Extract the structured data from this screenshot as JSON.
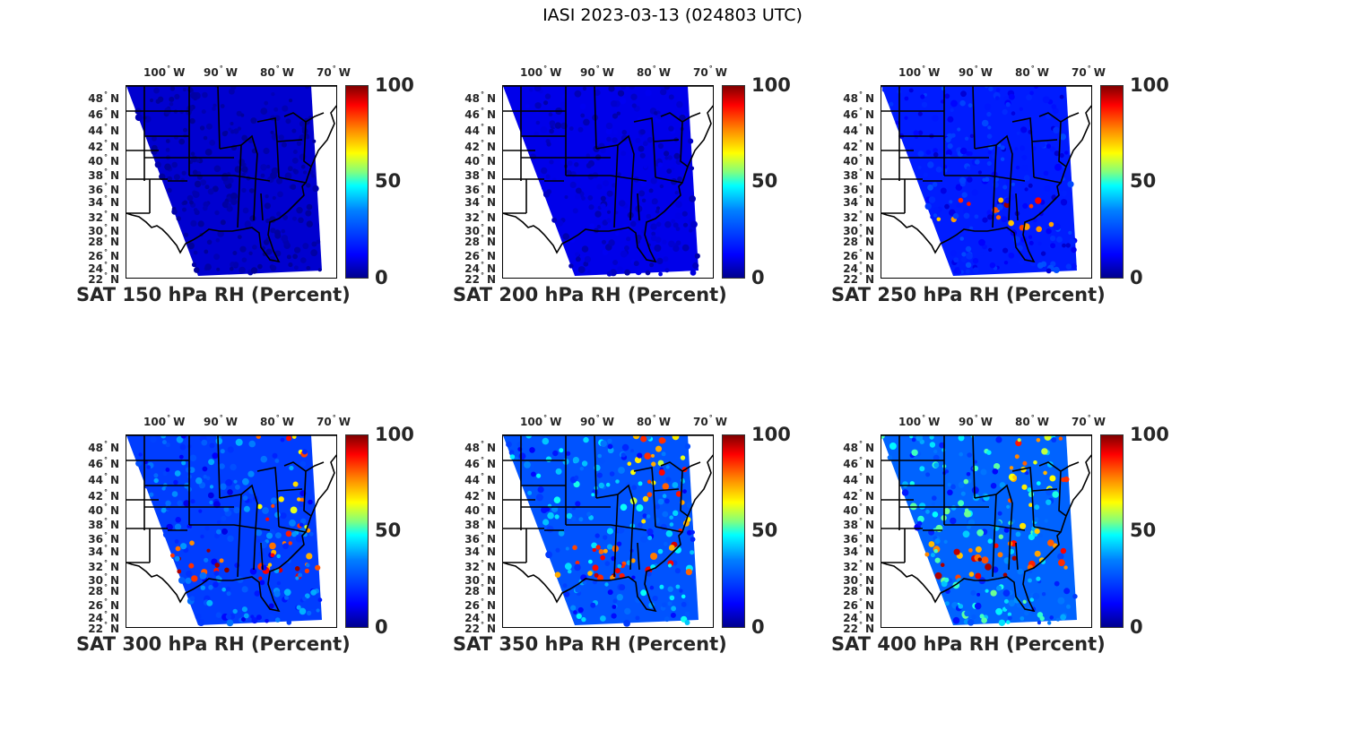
{
  "figure": {
    "title": "IASI 2023-03-13 (024803 UTC)"
  },
  "axes": {
    "lon_ticks": [
      "100",
      "90",
      "80",
      "70"
    ],
    "lon_hemisphere": "W",
    "lat_ticks": [
      "48",
      "46",
      "44",
      "42",
      "40",
      "38",
      "36",
      "34",
      "32",
      "30",
      "28",
      "26",
      "24",
      "22"
    ],
    "lat_hemisphere": "N",
    "degree_symbol": "°"
  },
  "colorbar": {
    "max_label": "100",
    "mid_label": "50",
    "min_label": "0",
    "colors": [
      "#00008f",
      "#0000ff",
      "#0080ff",
      "#00ffff",
      "#ffff00",
      "#ff8000",
      "#ff0000",
      "#800000"
    ]
  },
  "panels": [
    {
      "title": "SAT 150 hPa RH (Percent)",
      "level_hpa": 150,
      "moisture_level": 0.05
    },
    {
      "title": "SAT 200 hPa RH (Percent)",
      "level_hpa": 200,
      "moisture_level": 0.12
    },
    {
      "title": "SAT 250 hPa RH (Percent)",
      "level_hpa": 250,
      "moisture_level": 0.3
    },
    {
      "title": "SAT 300 hPa RH (Percent)",
      "level_hpa": 300,
      "moisture_level": 0.45
    },
    {
      "title": "SAT 350 hPa RH (Percent)",
      "level_hpa": 350,
      "moisture_level": 0.55
    },
    {
      "title": "SAT 400 hPa RH (Percent)",
      "level_hpa": 400,
      "moisture_level": 0.62
    }
  ]
}
